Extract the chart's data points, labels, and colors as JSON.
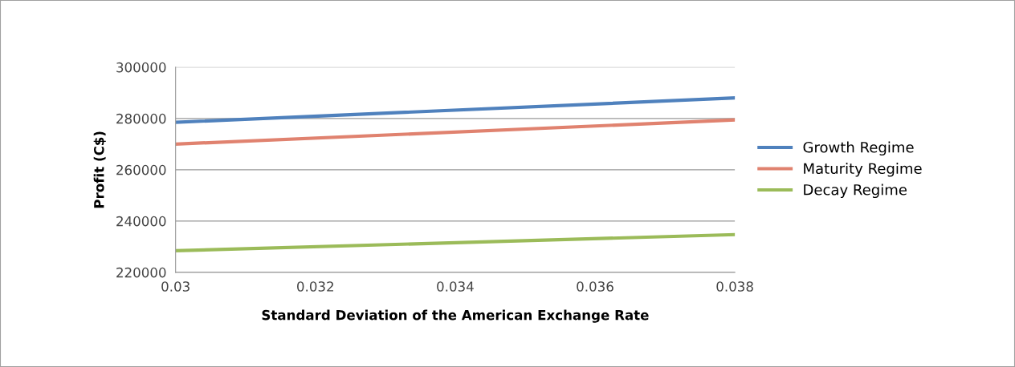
{
  "chart_data": {
    "type": "line",
    "xlabel": "Standard Deviation of the American Exchange Rate",
    "ylabel": "Profit (C$)",
    "x": [
      0.03,
      0.038
    ],
    "series": [
      {
        "name": "Growth Regime",
        "color": "#4f81bd",
        "values": [
          278500,
          288000
        ]
      },
      {
        "name": "Maturity Regime",
        "color": "#e0826f",
        "values": [
          270000,
          279400
        ]
      },
      {
        "name": "Decay Regime",
        "color": "#9bbb59",
        "values": [
          228400,
          234700
        ]
      }
    ],
    "xlim": [
      0.03,
      0.038
    ],
    "xticks": [
      0.03,
      0.032,
      0.034,
      0.036,
      0.038
    ],
    "ylim": [
      220000,
      300000
    ],
    "yticks": [
      220000,
      240000,
      260000,
      280000,
      300000
    ],
    "grid": "y",
    "legend": "right",
    "marker": "none",
    "line_style": "solid"
  }
}
